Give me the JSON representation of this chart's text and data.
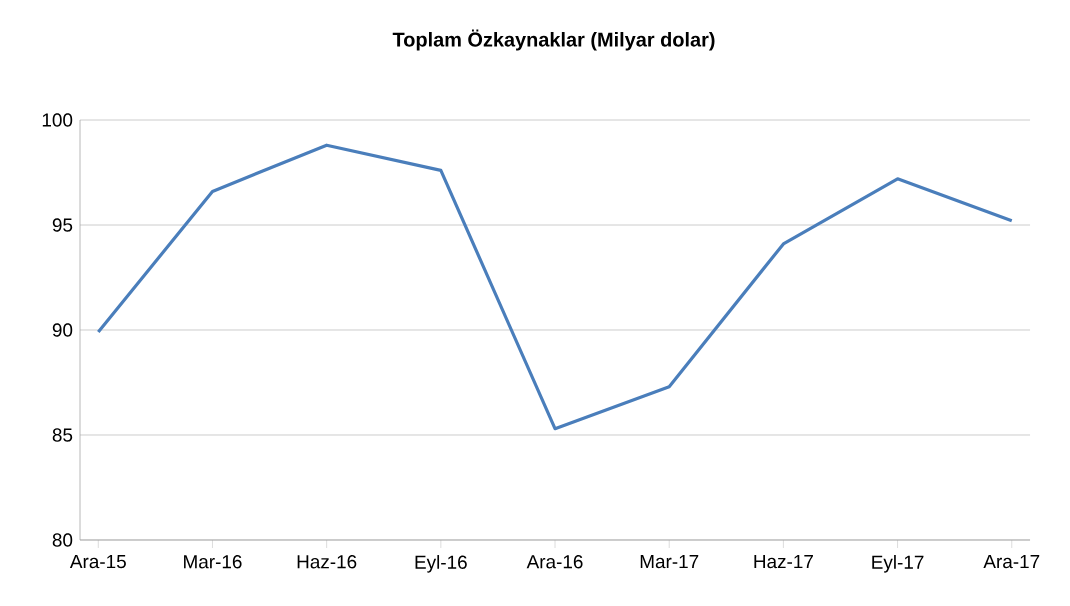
{
  "chart_data": {
    "type": "line",
    "title": "Toplam Özkaynaklar (Milyar dolar)",
    "categories": [
      "Ara-15",
      "Mar-16",
      "Haz-16",
      "Eyl-16",
      "Ara-16",
      "Mar-17",
      "Haz-17",
      "Eyl-17",
      "Ara-17"
    ],
    "series": [
      {
        "color": "#4a7ebb",
        "values": [
          89.9,
          96.6,
          98.8,
          97.6,
          85.3,
          87.3,
          94.1,
          97.2,
          95.2
        ]
      }
    ],
    "ylim": [
      80,
      100
    ],
    "yticks": [
      80,
      85,
      90,
      95,
      100
    ],
    "grid": "y",
    "legend": false,
    "marker": "none",
    "line_style": "solid"
  }
}
